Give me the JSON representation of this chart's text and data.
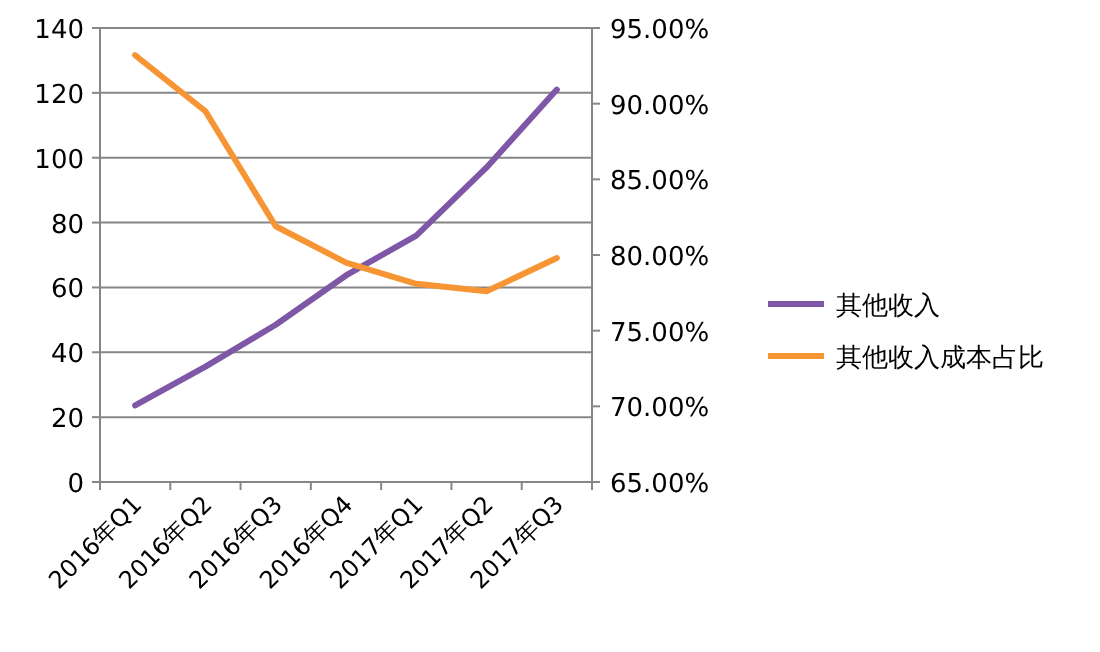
{
  "chart_data": {
    "type": "line",
    "categories": [
      "2016年Q1",
      "2016年Q2",
      "2016年Q3",
      "2016年Q4",
      "2017年Q1",
      "2017年Q2",
      "2017年Q3"
    ],
    "series": [
      {
        "name": "其他收入",
        "color": "#7e57a6",
        "values": [
          23.6,
          35.6,
          48.5,
          63.7,
          76,
          97,
          121
        ]
      },
      {
        "name": "其他收入成本占比",
        "color": "#f79433",
        "axis": "y2",
        "values": [
          93.2,
          89.5,
          81.9,
          79.5,
          78.1,
          77.6,
          79.8
        ]
      }
    ],
    "ylim": [
      0,
      140
    ],
    "yticks": [
      0,
      20,
      40,
      60,
      80,
      100,
      120,
      140
    ],
    "y2lim": [
      65,
      95
    ],
    "y2ticks": [
      {
        "value": 65,
        "label": "65.00%"
      },
      {
        "value": 70,
        "label": "70.00%"
      },
      {
        "value": 75,
        "label": "75.00%"
      },
      {
        "value": 80,
        "label": "80.00%"
      },
      {
        "value": 85,
        "label": "85.00%"
      },
      {
        "value": 90,
        "label": "90.00%"
      },
      {
        "value": 95,
        "label": "95.00%"
      }
    ],
    "grid": "y",
    "legend": "right",
    "marker": "none",
    "line_style": "solid"
  }
}
